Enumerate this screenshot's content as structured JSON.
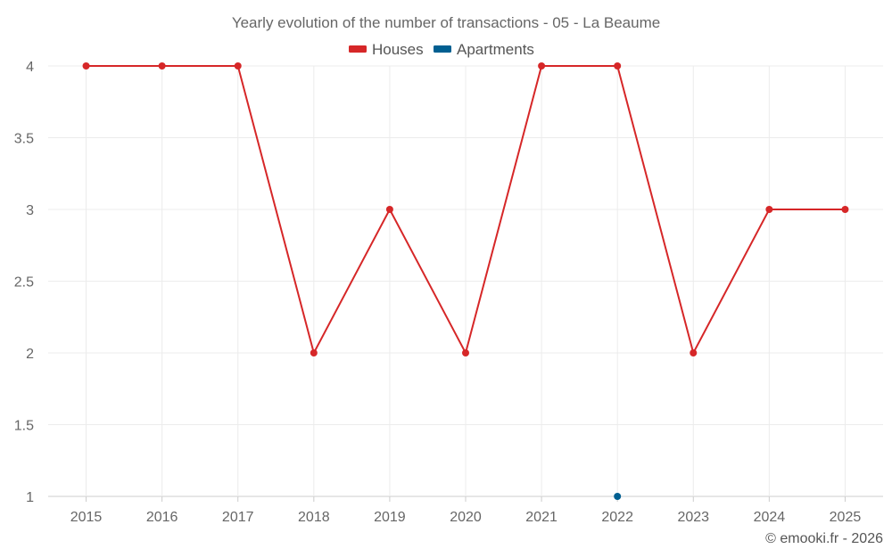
{
  "chart_data": {
    "type": "line",
    "title": "Yearly evolution of the number of transactions - 05 - La Beaume",
    "categories": [
      "2015",
      "2016",
      "2017",
      "2018",
      "2019",
      "2020",
      "2021",
      "2022",
      "2023",
      "2024",
      "2025"
    ],
    "yticks": [
      "1",
      "1.5",
      "2",
      "2.5",
      "3",
      "3.5",
      "4"
    ],
    "ylim": [
      1,
      4
    ],
    "series": [
      {
        "name": "Houses",
        "color": "#d62728",
        "values": [
          4,
          4,
          4,
          2,
          3,
          2,
          4,
          4,
          2,
          3,
          3
        ]
      },
      {
        "name": "Apartments",
        "color": "#005f91",
        "values": [
          null,
          null,
          null,
          null,
          null,
          null,
          null,
          1,
          null,
          null,
          null
        ]
      }
    ],
    "xlabel": "",
    "ylabel": "",
    "grid": true,
    "legend_position": "top-center"
  },
  "credit": "© emooki.fr - 2026"
}
